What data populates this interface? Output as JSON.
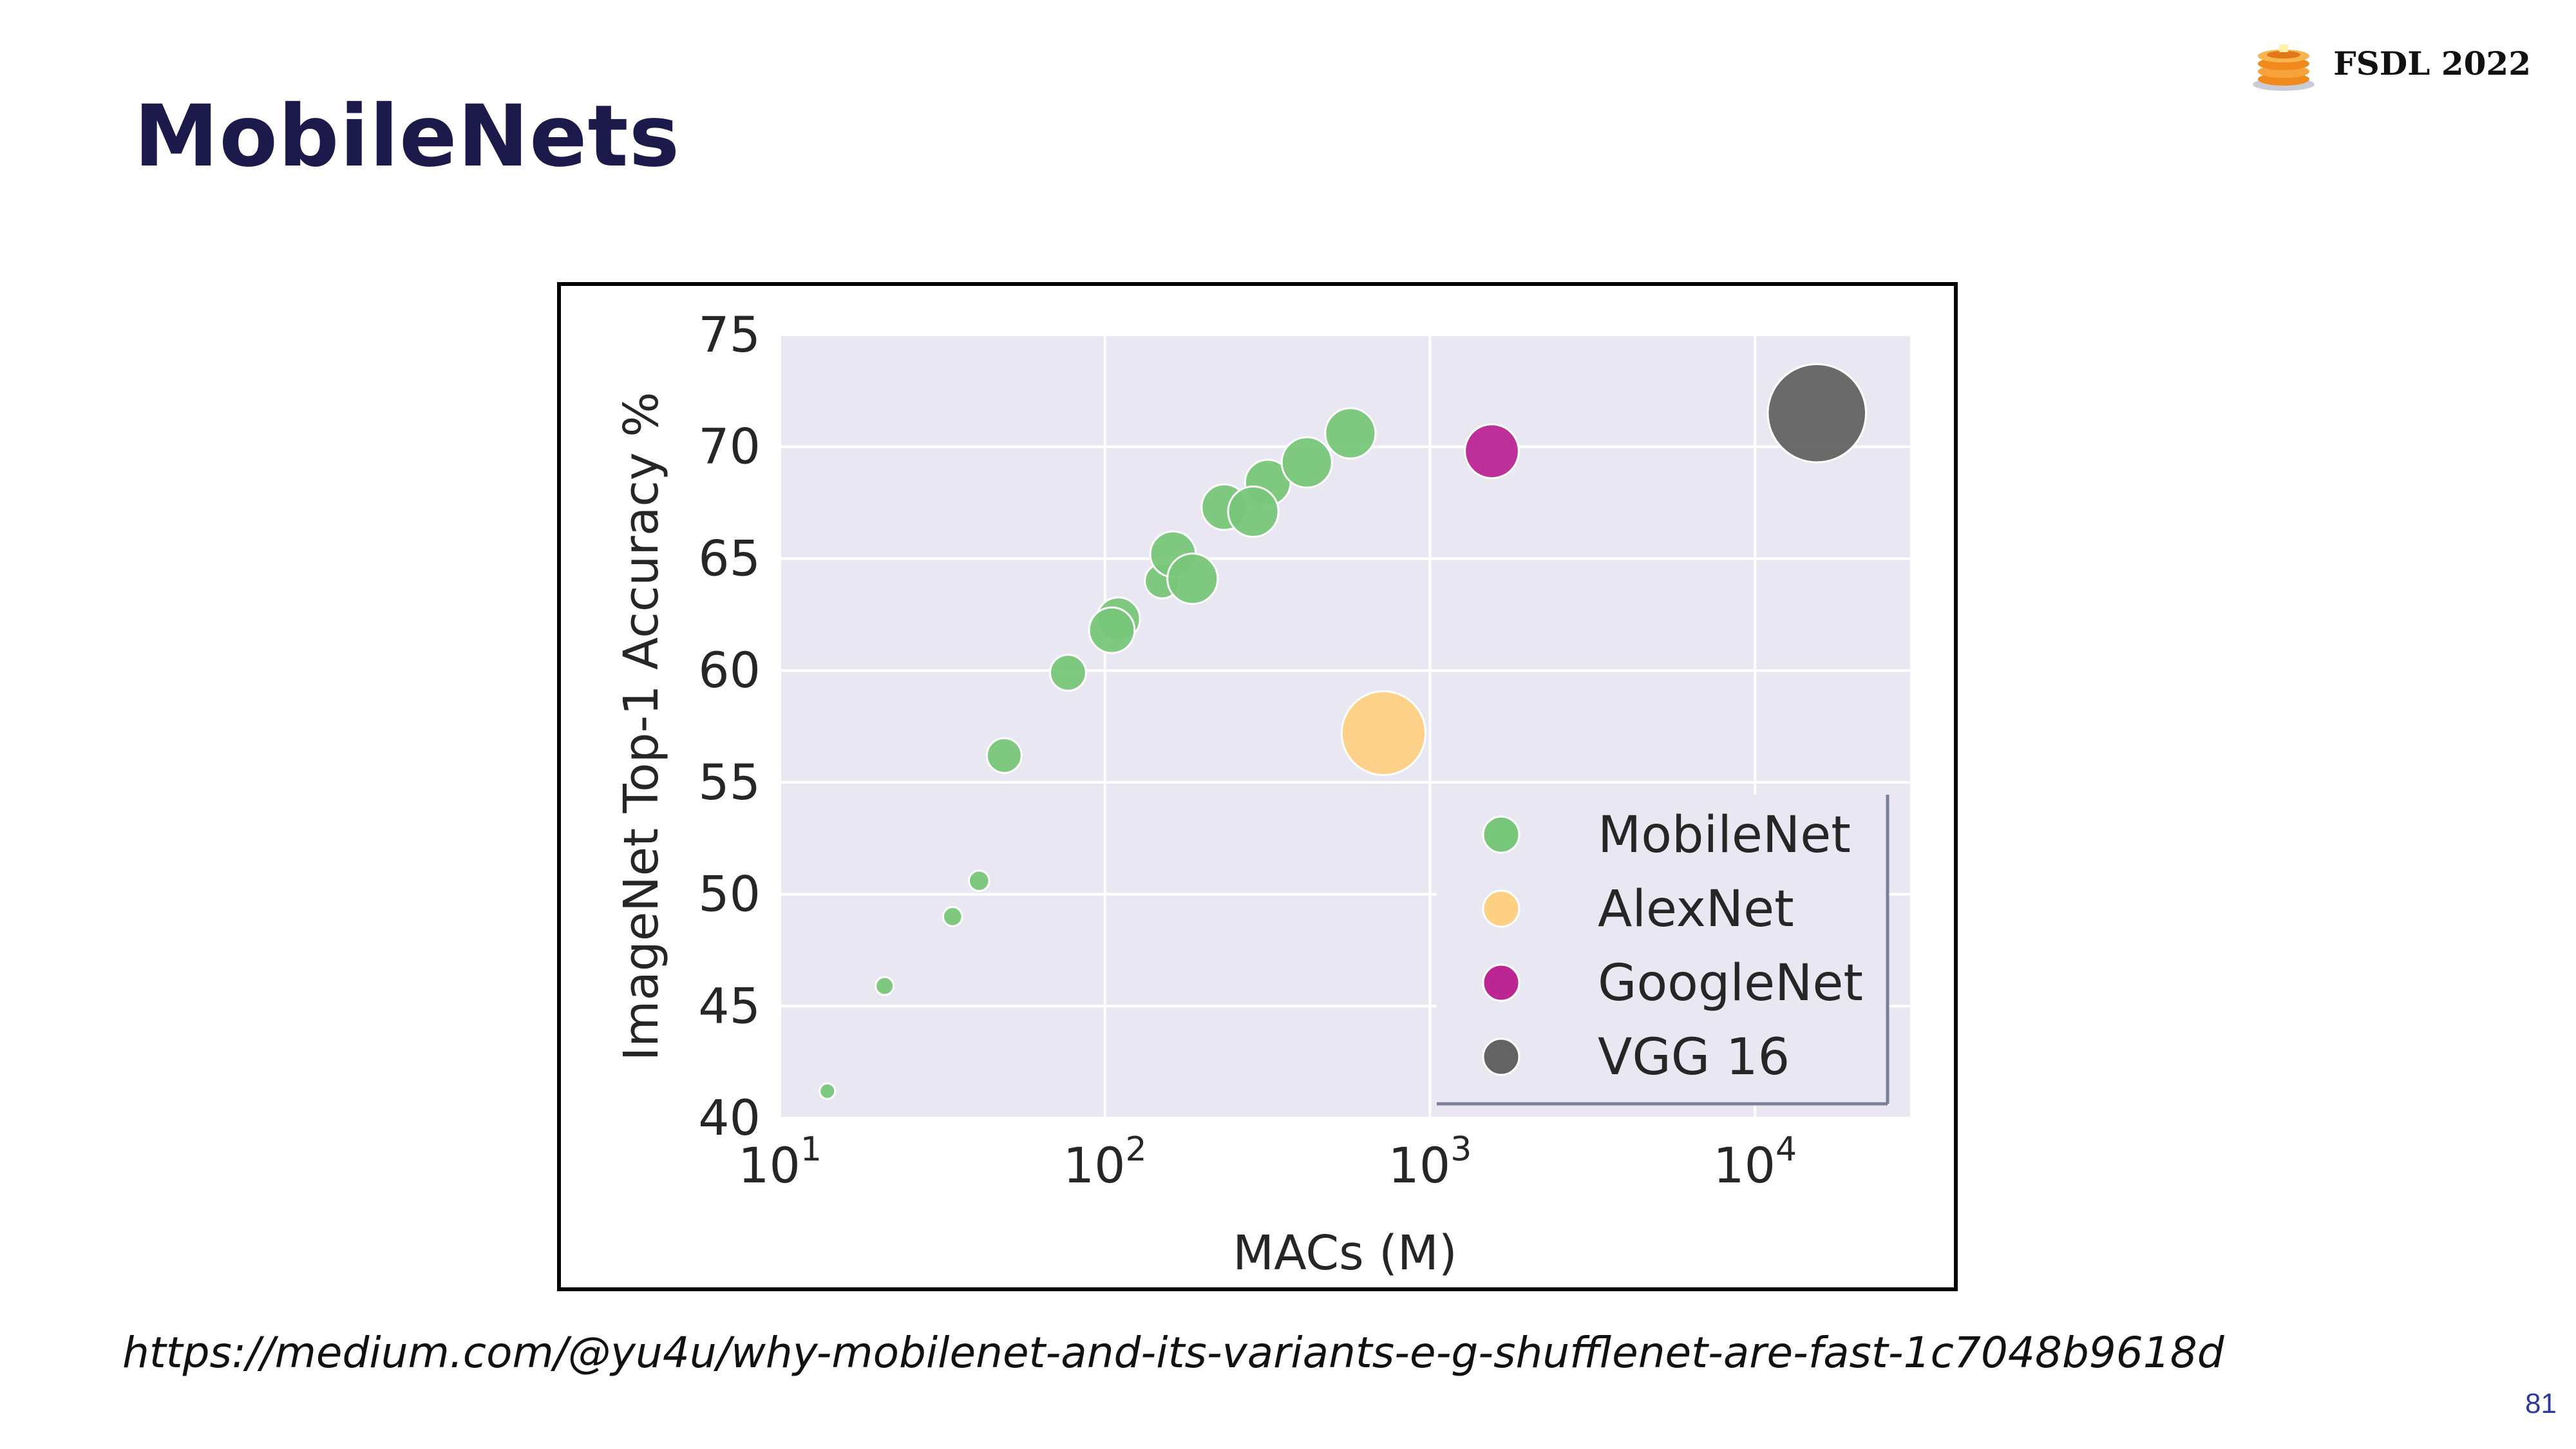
{
  "slide": {
    "title": "MobileNets",
    "brand_label": "FSDL 2022",
    "source_url": "https://medium.com/@yu4u/why-mobilenet-and-its-variants-e-g-shufflenet-are-fast-1c7048b9618d",
    "page_number": "81",
    "brand_icon": "pancake-stack-icon"
  },
  "chart_data": {
    "type": "scatter",
    "title": "",
    "xlabel": "MACs (M)",
    "ylabel": "ImageNet Top-1 Accuracy %",
    "x_scale": "log",
    "xlim": [
      10,
      30000
    ],
    "ylim": [
      40,
      75
    ],
    "x_ticks": [
      {
        "value": 10,
        "base": "10",
        "exp": "1"
      },
      {
        "value": 100,
        "base": "10",
        "exp": "2"
      },
      {
        "value": 1000,
        "base": "10",
        "exp": "3"
      },
      {
        "value": 10000,
        "base": "10",
        "exp": "4"
      }
    ],
    "y_ticks": [
      40,
      45,
      50,
      55,
      60,
      65,
      70,
      75
    ],
    "grid": true,
    "background_color": "#e9e8f2",
    "legend": {
      "position": "bottom-right",
      "entries": [
        {
          "label": "MobileNet",
          "color": "#78c679"
        },
        {
          "label": "AlexNet",
          "color": "#fed084"
        },
        {
          "label": "GoogleNet",
          "color": "#bb2693"
        },
        {
          "label": "VGG 16",
          "color": "#636363"
        }
      ]
    },
    "series": [
      {
        "name": "MobileNet",
        "color": "#78c679",
        "points": [
          {
            "x": 14,
            "y": 41.2,
            "size": 1.3
          },
          {
            "x": 21,
            "y": 45.9,
            "size": 1.5
          },
          {
            "x": 34,
            "y": 49.0,
            "size": 1.6
          },
          {
            "x": 41,
            "y": 50.6,
            "size": 1.7
          },
          {
            "x": 49,
            "y": 56.2,
            "size": 2.9
          },
          {
            "x": 77,
            "y": 59.9,
            "size": 3.0
          },
          {
            "x": 110,
            "y": 62.3,
            "size": 3.6
          },
          {
            "x": 105,
            "y": 61.8,
            "size": 3.8
          },
          {
            "x": 150,
            "y": 64.0,
            "size": 2.9
          },
          {
            "x": 162,
            "y": 65.2,
            "size": 3.8
          },
          {
            "x": 186,
            "y": 64.1,
            "size": 4.2
          },
          {
            "x": 233,
            "y": 67.3,
            "size": 3.8
          },
          {
            "x": 317,
            "y": 68.4,
            "size": 3.8
          },
          {
            "x": 286,
            "y": 67.1,
            "size": 4.2
          },
          {
            "x": 418,
            "y": 69.3,
            "size": 4.2
          },
          {
            "x": 569,
            "y": 70.6,
            "size": 4.2
          }
        ]
      },
      {
        "name": "AlexNet",
        "color": "#fed084",
        "points": [
          {
            "x": 720,
            "y": 57.2,
            "size": 7.0
          }
        ]
      },
      {
        "name": "GoogleNet",
        "color": "#bb2693",
        "points": [
          {
            "x": 1550,
            "y": 69.8,
            "size": 4.5
          }
        ]
      },
      {
        "name": "VGG 16",
        "color": "#636363",
        "points": [
          {
            "x": 15500,
            "y": 71.5,
            "size": 8.2
          }
        ]
      }
    ]
  }
}
